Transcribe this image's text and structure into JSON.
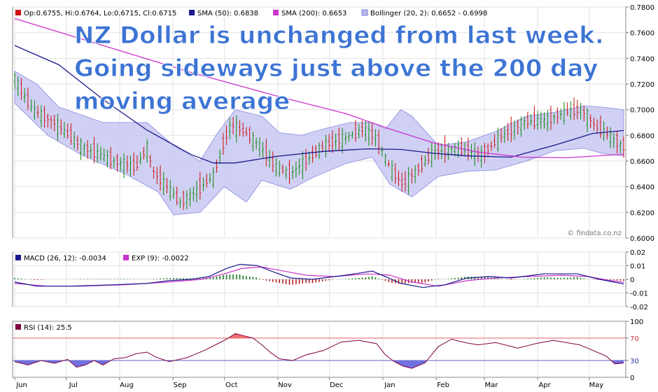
{
  "chart_data": [
    {
      "type": "candlestick",
      "panel": "price",
      "legend": [
        {
          "label": "Op:0.6755, Hi:0.6764, Lo:0.6715, Cl:0.6715",
          "color": "#cc1111"
        },
        {
          "label": "SMA (50): 0.6838",
          "color": "#1a1a8c"
        },
        {
          "label": "SMA (200): 0.6653",
          "color": "#cc33cc"
        },
        {
          "label": "Bollinger (20, 2): 0.6652 - 0.6998",
          "color": "#b8b8f0"
        }
      ],
      "annotation_lines": [
        "NZ Dollar is unchanged from last week.",
        "Going sideways just above the 200 day",
        "moving average"
      ],
      "watermark": "© findata.co.nz",
      "y_ticks": [
        "0.7800",
        "0.7600",
        "0.7400",
        "0.7200",
        "0.7000",
        "0.6800",
        "0.6600",
        "0.6400",
        "0.6200",
        "0.6000"
      ],
      "ylim": [
        0.6,
        0.78
      ],
      "x_ticks": [
        "Jun",
        "Jul",
        "Aug",
        "Sep",
        "Oct",
        "Nov",
        "Dec",
        "Jan",
        "Feb",
        "Mar",
        "Apr",
        "May"
      ],
      "close_trend": [
        [
          0,
          0.725
        ],
        [
          8,
          0.7
        ],
        [
          18,
          0.69
        ],
        [
          30,
          0.672
        ],
        [
          42,
          0.662
        ],
        [
          55,
          0.655
        ],
        [
          60,
          0.67
        ],
        [
          63,
          0.652
        ],
        [
          70,
          0.638
        ],
        [
          75,
          0.628
        ],
        [
          82,
          0.636
        ],
        [
          90,
          0.648
        ],
        [
          95,
          0.676
        ],
        [
          98,
          0.688
        ],
        [
          105,
          0.682
        ],
        [
          112,
          0.67
        ],
        [
          118,
          0.656
        ],
        [
          125,
          0.65
        ],
        [
          132,
          0.66
        ],
        [
          140,
          0.672
        ],
        [
          150,
          0.678
        ],
        [
          158,
          0.685
        ],
        [
          164,
          0.678
        ],
        [
          168,
          0.662
        ],
        [
          172,
          0.65
        ],
        [
          176,
          0.642
        ],
        [
          182,
          0.652
        ],
        [
          190,
          0.667
        ],
        [
          200,
          0.67
        ],
        [
          212,
          0.665
        ],
        [
          220,
          0.678
        ],
        [
          230,
          0.69
        ],
        [
          240,
          0.692
        ],
        [
          250,
          0.698
        ],
        [
          257,
          0.7
        ],
        [
          264,
          0.686
        ],
        [
          272,
          0.676
        ],
        [
          276,
          0.6715
        ]
      ],
      "bollinger_upper": [
        [
          0,
          0.73
        ],
        [
          10,
          0.72
        ],
        [
          20,
          0.702
        ],
        [
          40,
          0.69
        ],
        [
          60,
          0.69
        ],
        [
          72,
          0.672
        ],
        [
          84,
          0.66
        ],
        [
          92,
          0.682
        ],
        [
          100,
          0.7
        ],
        [
          112,
          0.695
        ],
        [
          120,
          0.682
        ],
        [
          130,
          0.68
        ],
        [
          140,
          0.685
        ],
        [
          152,
          0.69
        ],
        [
          162,
          0.69
        ],
        [
          168,
          0.685
        ],
        [
          175,
          0.7
        ],
        [
          180,
          0.695
        ],
        [
          192,
          0.672
        ],
        [
          205,
          0.675
        ],
        [
          218,
          0.683
        ],
        [
          232,
          0.695
        ],
        [
          245,
          0.698
        ],
        [
          258,
          0.703
        ],
        [
          266,
          0.702
        ],
        [
          276,
          0.7
        ]
      ],
      "bollinger_lower": [
        [
          0,
          0.705
        ],
        [
          15,
          0.68
        ],
        [
          30,
          0.665
        ],
        [
          50,
          0.65
        ],
        [
          65,
          0.636
        ],
        [
          72,
          0.618
        ],
        [
          84,
          0.62
        ],
        [
          95,
          0.64
        ],
        [
          105,
          0.628
        ],
        [
          112,
          0.645
        ],
        [
          125,
          0.638
        ],
        [
          135,
          0.647
        ],
        [
          150,
          0.658
        ],
        [
          162,
          0.663
        ],
        [
          170,
          0.642
        ],
        [
          180,
          0.632
        ],
        [
          192,
          0.648
        ],
        [
          205,
          0.652
        ],
        [
          218,
          0.653
        ],
        [
          232,
          0.66
        ],
        [
          245,
          0.668
        ],
        [
          258,
          0.67
        ],
        [
          266,
          0.666
        ],
        [
          276,
          0.664
        ]
      ],
      "sma50": [
        [
          0,
          0.75
        ],
        [
          20,
          0.735
        ],
        [
          40,
          0.708
        ],
        [
          60,
          0.684
        ],
        [
          80,
          0.665
        ],
        [
          90,
          0.6585
        ],
        [
          100,
          0.6585
        ],
        [
          118,
          0.6635
        ],
        [
          140,
          0.6675
        ],
        [
          160,
          0.6695
        ],
        [
          175,
          0.669
        ],
        [
          190,
          0.666
        ],
        [
          205,
          0.664
        ],
        [
          225,
          0.663
        ],
        [
          245,
          0.6725
        ],
        [
          262,
          0.6815
        ],
        [
          276,
          0.6838
        ]
      ],
      "sma200": [
        [
          0,
          0.771
        ],
        [
          40,
          0.75
        ],
        [
          80,
          0.729
        ],
        [
          120,
          0.71
        ],
        [
          150,
          0.697
        ],
        [
          170,
          0.685
        ],
        [
          190,
          0.674
        ],
        [
          210,
          0.667
        ],
        [
          230,
          0.663
        ],
        [
          250,
          0.6625
        ],
        [
          276,
          0.6653
        ]
      ]
    },
    {
      "type": "line",
      "panel": "macd",
      "legend": [
        {
          "label": "MACD (26, 12): -0.0034",
          "color": "#1a1a8c"
        },
        {
          "label": "EXP (9): -0.0022",
          "color": "#cc33cc"
        }
      ],
      "y_ticks": [
        "0.02",
        "0.01",
        "0",
        "-0.01",
        "-0.02"
      ],
      "ylim": [
        -0.02,
        0.02
      ],
      "macd": [
        [
          0,
          -0.002
        ],
        [
          10,
          -0.005
        ],
        [
          25,
          -0.005
        ],
        [
          45,
          -0.004
        ],
        [
          60,
          -0.003
        ],
        [
          70,
          -0.001
        ],
        [
          80,
          0.0
        ],
        [
          88,
          0.002
        ],
        [
          96,
          0.008
        ],
        [
          102,
          0.011
        ],
        [
          110,
          0.01
        ],
        [
          118,
          0.005
        ],
        [
          125,
          0.001
        ],
        [
          135,
          0.0
        ],
        [
          150,
          0.003
        ],
        [
          162,
          0.006
        ],
        [
          168,
          0.002
        ],
        [
          175,
          -0.003
        ],
        [
          185,
          -0.006
        ],
        [
          195,
          -0.004
        ],
        [
          205,
          0.001
        ],
        [
          215,
          0.002
        ],
        [
          225,
          0.001
        ],
        [
          240,
          0.004
        ],
        [
          255,
          0.004
        ],
        [
          265,
          0.0
        ],
        [
          276,
          -0.0034
        ]
      ],
      "signal": [
        [
          0,
          -0.003
        ],
        [
          15,
          -0.005
        ],
        [
          30,
          -0.005
        ],
        [
          50,
          -0.004
        ],
        [
          70,
          -0.002
        ],
        [
          85,
          0.0
        ],
        [
          95,
          0.004
        ],
        [
          103,
          0.008
        ],
        [
          112,
          0.009
        ],
        [
          122,
          0.006
        ],
        [
          132,
          0.003
        ],
        [
          145,
          0.002
        ],
        [
          160,
          0.004
        ],
        [
          170,
          0.003
        ],
        [
          180,
          -0.002
        ],
        [
          192,
          -0.005
        ],
        [
          205,
          -0.001
        ],
        [
          218,
          0.001
        ],
        [
          232,
          0.002
        ],
        [
          248,
          0.003
        ],
        [
          260,
          0.002
        ],
        [
          270,
          -0.001
        ],
        [
          276,
          -0.0022
        ]
      ]
    },
    {
      "type": "line",
      "panel": "rsi",
      "legend": [
        {
          "label": "RSI (14): 25.5",
          "color": "#800040"
        }
      ],
      "y_ticks": [
        "100",
        "70",
        "30",
        "0"
      ],
      "ylim": [
        0,
        100
      ],
      "rsi": [
        [
          0,
          28
        ],
        [
          6,
          22
        ],
        [
          12,
          30
        ],
        [
          18,
          25
        ],
        [
          24,
          32
        ],
        [
          28,
          18
        ],
        [
          32,
          22
        ],
        [
          36,
          30
        ],
        [
          40,
          22
        ],
        [
          45,
          33
        ],
        [
          50,
          35
        ],
        [
          55,
          42
        ],
        [
          60,
          45
        ],
        [
          64,
          36
        ],
        [
          70,
          28
        ],
        [
          78,
          35
        ],
        [
          86,
          48
        ],
        [
          92,
          60
        ],
        [
          96,
          68
        ],
        [
          100,
          78
        ],
        [
          104,
          74
        ],
        [
          108,
          70
        ],
        [
          112,
          58
        ],
        [
          116,
          44
        ],
        [
          120,
          33
        ],
        [
          126,
          30
        ],
        [
          132,
          40
        ],
        [
          140,
          48
        ],
        [
          148,
          63
        ],
        [
          156,
          66
        ],
        [
          164,
          60
        ],
        [
          168,
          40
        ],
        [
          172,
          28
        ],
        [
          176,
          20
        ],
        [
          180,
          16
        ],
        [
          186,
          26
        ],
        [
          192,
          55
        ],
        [
          198,
          68
        ],
        [
          204,
          62
        ],
        [
          210,
          58
        ],
        [
          218,
          62
        ],
        [
          228,
          52
        ],
        [
          236,
          60
        ],
        [
          244,
          66
        ],
        [
          250,
          62
        ],
        [
          256,
          58
        ],
        [
          262,
          48
        ],
        [
          268,
          38
        ],
        [
          272,
          24
        ],
        [
          276,
          25.5
        ]
      ]
    }
  ]
}
